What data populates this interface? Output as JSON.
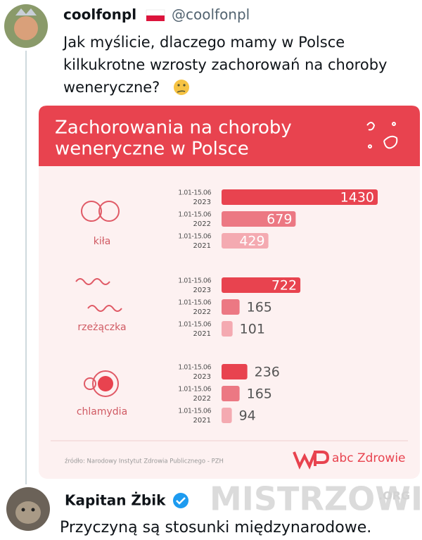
{
  "tweet": {
    "user": "coolfonpl",
    "handle": "@coolfonpl",
    "text_lines": [
      "Jak myślicie, dlaczego mamy w Polsce",
      "kilkukrotne wzrosty zachorowań na choroby",
      "weneryczne?"
    ]
  },
  "chart_data": {
    "type": "bar",
    "orientation": "horizontal",
    "title_lines": [
      "Zachorowania na choroby",
      "weneryczne w Polsce"
    ],
    "categories": [
      "kiła",
      "rzeżączka",
      "chlamydia"
    ],
    "series": [
      {
        "name": "2023",
        "period": "1.01-15.06",
        "color": "#e8434f",
        "values": [
          1430,
          722,
          236
        ]
      },
      {
        "name": "2022",
        "period": "1.01-15.06",
        "color": "#ec7883",
        "values": [
          679,
          165,
          165
        ]
      },
      {
        "name": "2021",
        "period": "1.01-15.06",
        "color": "#f4aab1",
        "values": [
          429,
          101,
          94
        ]
      }
    ],
    "source": "źródło: Narodowy Instytut Zdrowia Publicznego - PZH",
    "brand": "abc Zdrowie"
  },
  "reply": {
    "user": "Kapitan Żbik",
    "text": "Przyczyną są stosunki międzynarodowe."
  },
  "watermark": {
    "text": "MISTRZOWIE",
    "suffix": ".ORG"
  }
}
